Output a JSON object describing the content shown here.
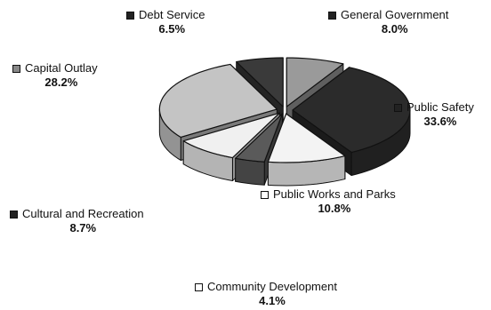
{
  "chart_data": {
    "type": "pie",
    "title": "",
    "three_d": true,
    "legend_placement": "around",
    "slices": [
      {
        "label": "General Government",
        "value": 8.0,
        "percent_label": "8.0%",
        "color": "#9a9a9a",
        "swatch": "#222222"
      },
      {
        "label": "Public Safety",
        "value": 33.6,
        "percent_label": "33.6%",
        "color": "#2b2b2b",
        "swatch": "#222222"
      },
      {
        "label": "Public Works and Parks",
        "value": 10.8,
        "percent_label": "10.8%",
        "color": "#f3f3f3",
        "swatch": "#ffffff"
      },
      {
        "label": "Community Development",
        "value": 4.1,
        "percent_label": "4.1%",
        "color": "#5a5a5a",
        "swatch": "#ffffff"
      },
      {
        "label": "Cultural and Recreation",
        "value": 8.7,
        "percent_label": "8.7%",
        "color": "#f0f0f0",
        "swatch": "#222222"
      },
      {
        "label": "Capital Outlay",
        "value": 28.2,
        "percent_label": "28.2%",
        "color": "#c4c4c4",
        "swatch": "#888888"
      },
      {
        "label": "Debt Service",
        "value": 6.5,
        "percent_label": "6.5%",
        "color": "#3a3a3a",
        "swatch": "#222222"
      }
    ]
  }
}
